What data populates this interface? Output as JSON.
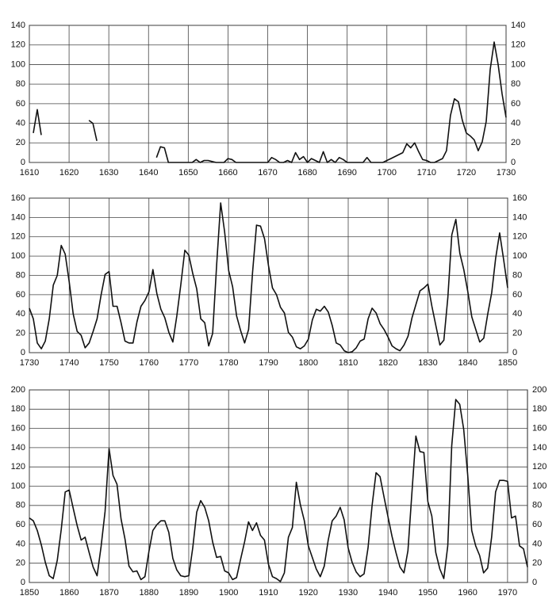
{
  "chart_data": [
    {
      "type": "line",
      "grid": true,
      "xlim": [
        1610,
        1730
      ],
      "ylim": [
        0,
        140
      ],
      "xticks": [
        1610,
        1620,
        1630,
        1640,
        1650,
        1660,
        1670,
        1680,
        1690,
        1700,
        1710,
        1720,
        1730
      ],
      "yticks": [
        0,
        20,
        40,
        60,
        80,
        100,
        120,
        140
      ],
      "x": [
        1611,
        1612,
        1613,
        1614,
        1615,
        1616,
        1617,
        1618,
        1619,
        1620,
        1621,
        1622,
        1623,
        1624,
        1625,
        1626,
        1627,
        1628,
        1629,
        1630,
        1631,
        1632,
        1633,
        1634,
        1635,
        1636,
        1637,
        1638,
        1639,
        1640,
        1641,
        1642,
        1643,
        1644,
        1645,
        1646,
        1647,
        1648,
        1649,
        1650,
        1651,
        1652,
        1653,
        1654,
        1655,
        1656,
        1657,
        1658,
        1659,
        1660,
        1661,
        1662,
        1663,
        1664,
        1665,
        1666,
        1667,
        1668,
        1669,
        1670,
        1671,
        1672,
        1673,
        1674,
        1675,
        1676,
        1677,
        1678,
        1679,
        1680,
        1681,
        1682,
        1683,
        1684,
        1685,
        1686,
        1687,
        1688,
        1689,
        1690,
        1691,
        1692,
        1693,
        1694,
        1695,
        1696,
        1697,
        1698,
        1699,
        1700,
        1701,
        1702,
        1703,
        1704,
        1705,
        1706,
        1707,
        1708,
        1709,
        1710,
        1711,
        1712,
        1713,
        1714,
        1715,
        1716,
        1717,
        1718,
        1719,
        1720,
        1721,
        1722,
        1723,
        1724,
        1725,
        1726,
        1727,
        1728,
        1729,
        1730
      ],
      "series": [
        {
          "color": "#111111",
          "values": [
            30,
            54,
            28,
            null,
            null,
            null,
            null,
            null,
            null,
            null,
            null,
            null,
            null,
            null,
            43,
            40,
            22,
            null,
            null,
            null,
            null,
            null,
            null,
            null,
            null,
            null,
            null,
            null,
            null,
            null,
            null,
            5,
            16,
            15,
            0,
            0,
            0,
            0,
            0,
            0,
            0,
            3,
            0,
            2,
            2,
            1,
            0,
            0,
            0,
            4,
            3,
            0,
            0,
            0,
            0,
            0,
            0,
            0,
            0,
            0,
            5,
            3,
            0,
            0,
            2,
            0,
            10,
            3,
            6,
            0,
            4,
            2,
            0,
            11,
            0,
            3,
            0,
            5,
            3,
            0,
            0,
            0,
            0,
            0,
            5,
            0,
            0,
            0,
            0,
            2,
            4,
            6,
            8,
            10,
            19,
            15,
            20,
            11,
            3,
            2,
            0,
            0,
            2,
            4,
            12,
            48,
            65,
            62,
            43,
            30,
            27,
            23,
            12,
            21,
            42,
            95,
            123,
            100,
            70,
            46
          ]
        }
      ]
    },
    {
      "type": "line",
      "grid": true,
      "xlim": [
        1730,
        1850
      ],
      "ylim": [
        0,
        160
      ],
      "xticks": [
        1730,
        1740,
        1750,
        1760,
        1770,
        1780,
        1790,
        1800,
        1810,
        1820,
        1830,
        1840,
        1850
      ],
      "yticks": [
        0,
        20,
        40,
        60,
        80,
        100,
        120,
        140,
        160
      ],
      "x": [
        1730,
        1731,
        1732,
        1733,
        1734,
        1735,
        1736,
        1737,
        1738,
        1739,
        1740,
        1741,
        1742,
        1743,
        1744,
        1745,
        1746,
        1747,
        1748,
        1749,
        1750,
        1751,
        1752,
        1753,
        1754,
        1755,
        1756,
        1757,
        1758,
        1759,
        1760,
        1761,
        1762,
        1763,
        1764,
        1765,
        1766,
        1767,
        1768,
        1769,
        1770,
        1771,
        1772,
        1773,
        1774,
        1775,
        1776,
        1777,
        1778,
        1779,
        1780,
        1781,
        1782,
        1783,
        1784,
        1785,
        1786,
        1787,
        1788,
        1789,
        1790,
        1791,
        1792,
        1793,
        1794,
        1795,
        1796,
        1797,
        1798,
        1799,
        1800,
        1801,
        1802,
        1803,
        1804,
        1805,
        1806,
        1807,
        1808,
        1809,
        1810,
        1811,
        1812,
        1813,
        1814,
        1815,
        1816,
        1817,
        1818,
        1819,
        1820,
        1821,
        1822,
        1823,
        1824,
        1825,
        1826,
        1827,
        1828,
        1829,
        1830,
        1831,
        1832,
        1833,
        1834,
        1835,
        1836,
        1837,
        1838,
        1839,
        1840,
        1841,
        1842,
        1843,
        1844,
        1845,
        1846,
        1847,
        1848,
        1849,
        1850
      ],
      "series": [
        {
          "color": "#111111",
          "values": [
            46,
            35,
            10,
            4,
            12,
            35,
            70,
            80,
            111,
            102,
            73,
            40,
            22,
            18,
            5,
            10,
            22,
            35,
            60,
            81,
            84,
            48,
            48,
            31,
            12,
            10,
            10,
            32,
            48,
            54,
            63,
            86,
            61,
            45,
            36,
            21,
            11,
            38,
            70,
            106,
            101,
            82,
            66,
            35,
            31,
            7,
            20,
            92,
            155,
            125,
            85,
            68,
            38,
            23,
            10,
            24,
            83,
            132,
            131,
            118,
            90,
            67,
            60,
            47,
            41,
            21,
            16,
            6,
            4,
            7,
            14,
            34,
            45,
            43,
            48,
            42,
            28,
            10,
            8,
            2,
            0,
            1,
            5,
            12,
            14,
            35,
            46,
            41,
            30,
            24,
            16,
            7,
            4,
            2,
            8,
            17,
            36,
            50,
            64,
            67,
            71,
            48,
            28,
            8,
            13,
            57,
            122,
            138,
            103,
            86,
            63,
            37,
            24,
            11,
            15,
            40,
            62,
            98,
            124,
            96,
            67
          ]
        }
      ]
    },
    {
      "type": "line",
      "grid": true,
      "xlim": [
        1850,
        1975
      ],
      "ylim": [
        0,
        200
      ],
      "xticks": [
        1850,
        1860,
        1870,
        1880,
        1890,
        1900,
        1910,
        1920,
        1930,
        1940,
        1950,
        1960,
        1970
      ],
      "yticks": [
        0,
        20,
        40,
        60,
        80,
        100,
        120,
        140,
        160,
        180,
        200
      ],
      "x": [
        1850,
        1851,
        1852,
        1853,
        1854,
        1855,
        1856,
        1857,
        1858,
        1859,
        1860,
        1861,
        1862,
        1863,
        1864,
        1865,
        1866,
        1867,
        1868,
        1869,
        1870,
        1871,
        1872,
        1873,
        1874,
        1875,
        1876,
        1877,
        1878,
        1879,
        1880,
        1881,
        1882,
        1883,
        1884,
        1885,
        1886,
        1887,
        1888,
        1889,
        1890,
        1891,
        1892,
        1893,
        1894,
        1895,
        1896,
        1897,
        1898,
        1899,
        1900,
        1901,
        1902,
        1903,
        1904,
        1905,
        1906,
        1907,
        1908,
        1909,
        1910,
        1911,
        1912,
        1913,
        1914,
        1915,
        1916,
        1917,
        1918,
        1919,
        1920,
        1921,
        1922,
        1923,
        1924,
        1925,
        1926,
        1927,
        1928,
        1929,
        1930,
        1931,
        1932,
        1933,
        1934,
        1935,
        1936,
        1937,
        1938,
        1939,
        1940,
        1941,
        1942,
        1943,
        1944,
        1945,
        1946,
        1947,
        1948,
        1949,
        1950,
        1951,
        1952,
        1953,
        1954,
        1955,
        1956,
        1957,
        1958,
        1959,
        1960,
        1961,
        1962,
        1963,
        1964,
        1965,
        1966,
        1967,
        1968,
        1969,
        1970,
        1971,
        1972,
        1973,
        1974,
        1975
      ],
      "series": [
        {
          "color": "#111111",
          "values": [
            67,
            64,
            54,
            39,
            21,
            7,
            4,
            23,
            55,
            94,
            96,
            77,
            59,
            44,
            47,
            31,
            16,
            7,
            37,
            74,
            139,
            111,
            102,
            66,
            45,
            17,
            11,
            12,
            3,
            6,
            32,
            54,
            60,
            64,
            64,
            52,
            25,
            13,
            7,
            6,
            7,
            36,
            73,
            85,
            78,
            64,
            42,
            26,
            27,
            12,
            10,
            3,
            5,
            24,
            42,
            63,
            54,
            62,
            49,
            44,
            19,
            6,
            4,
            1,
            10,
            47,
            57,
            104,
            81,
            64,
            38,
            26,
            14,
            6,
            17,
            44,
            64,
            69,
            78,
            65,
            36,
            21,
            11,
            6,
            9,
            36,
            80,
            114,
            110,
            89,
            68,
            48,
            31,
            16,
            10,
            33,
            93,
            152,
            136,
            135,
            84,
            69,
            31,
            14,
            4,
            38,
            142,
            190,
            185,
            159,
            112,
            54,
            38,
            28,
            10,
            15,
            47,
            94,
            106,
            106,
            105,
            67,
            69,
            38,
            35,
            16
          ]
        }
      ]
    }
  ]
}
